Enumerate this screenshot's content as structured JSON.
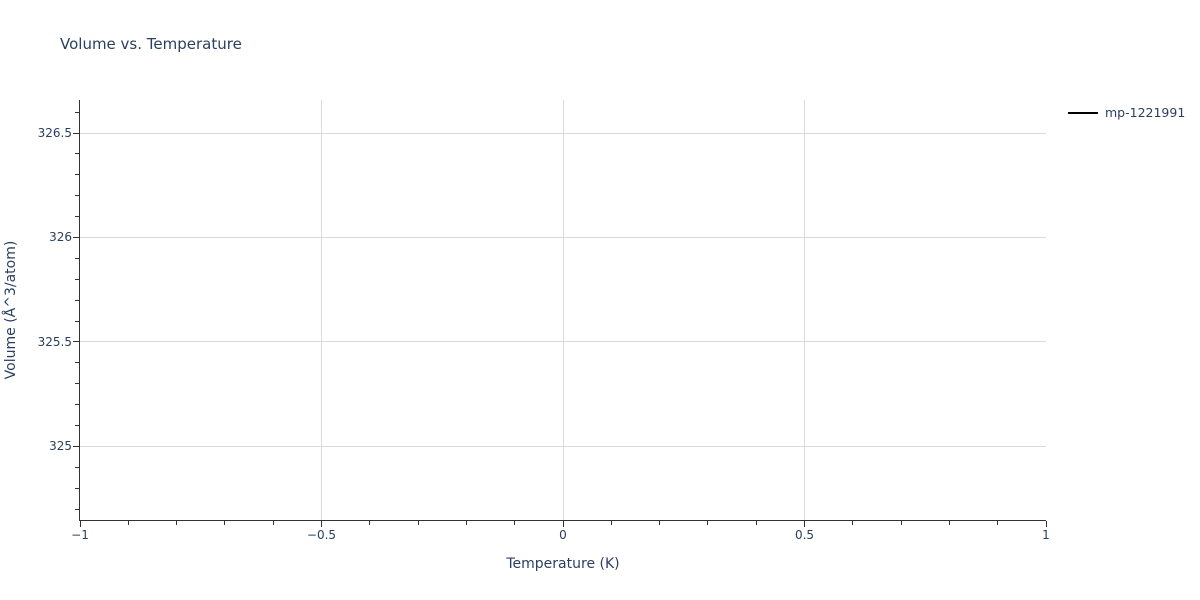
{
  "title": "Volume vs. Temperature",
  "chart_data": {
    "type": "line",
    "title": "Volume vs. Temperature",
    "xlabel": "Temperature (K)",
    "ylabel": "Volume (Å^3/atom)",
    "xlim": [
      -1,
      1
    ],
    "ylim": [
      324.648,
      326.658
    ],
    "grid": true,
    "legend_position": "outside-top-right",
    "x_major_ticks": [
      {
        "value": -1,
        "label": "−1"
      },
      {
        "value": -0.5,
        "label": "−0.5"
      },
      {
        "value": 0,
        "label": "0"
      },
      {
        "value": 0.5,
        "label": "0.5"
      },
      {
        "value": 1,
        "label": "1"
      }
    ],
    "x_minor_step": 0.1,
    "x_gridlines": [
      -0.5,
      0,
      0.5
    ],
    "y_major_ticks": [
      {
        "value": 325,
        "label": "325"
      },
      {
        "value": 325.5,
        "label": "325.5"
      },
      {
        "value": 326,
        "label": "326"
      },
      {
        "value": 326.5,
        "label": "326.5"
      }
    ],
    "y_minor_step": 0.1,
    "y_gridlines": [
      325,
      325.5,
      326,
      326.5
    ],
    "series": [
      {
        "name": "mp-1221991",
        "color": "#000000",
        "mode": "lines",
        "x": [],
        "y": []
      }
    ]
  },
  "legend": {
    "items": [
      {
        "label": "mp-1221991",
        "color": "#000000"
      }
    ]
  },
  "colors": {
    "background": "#ffffff",
    "text": "#2a3f5f",
    "axis": "#333333",
    "grid": "#d9d9d9",
    "legend_line": "#000000"
  }
}
